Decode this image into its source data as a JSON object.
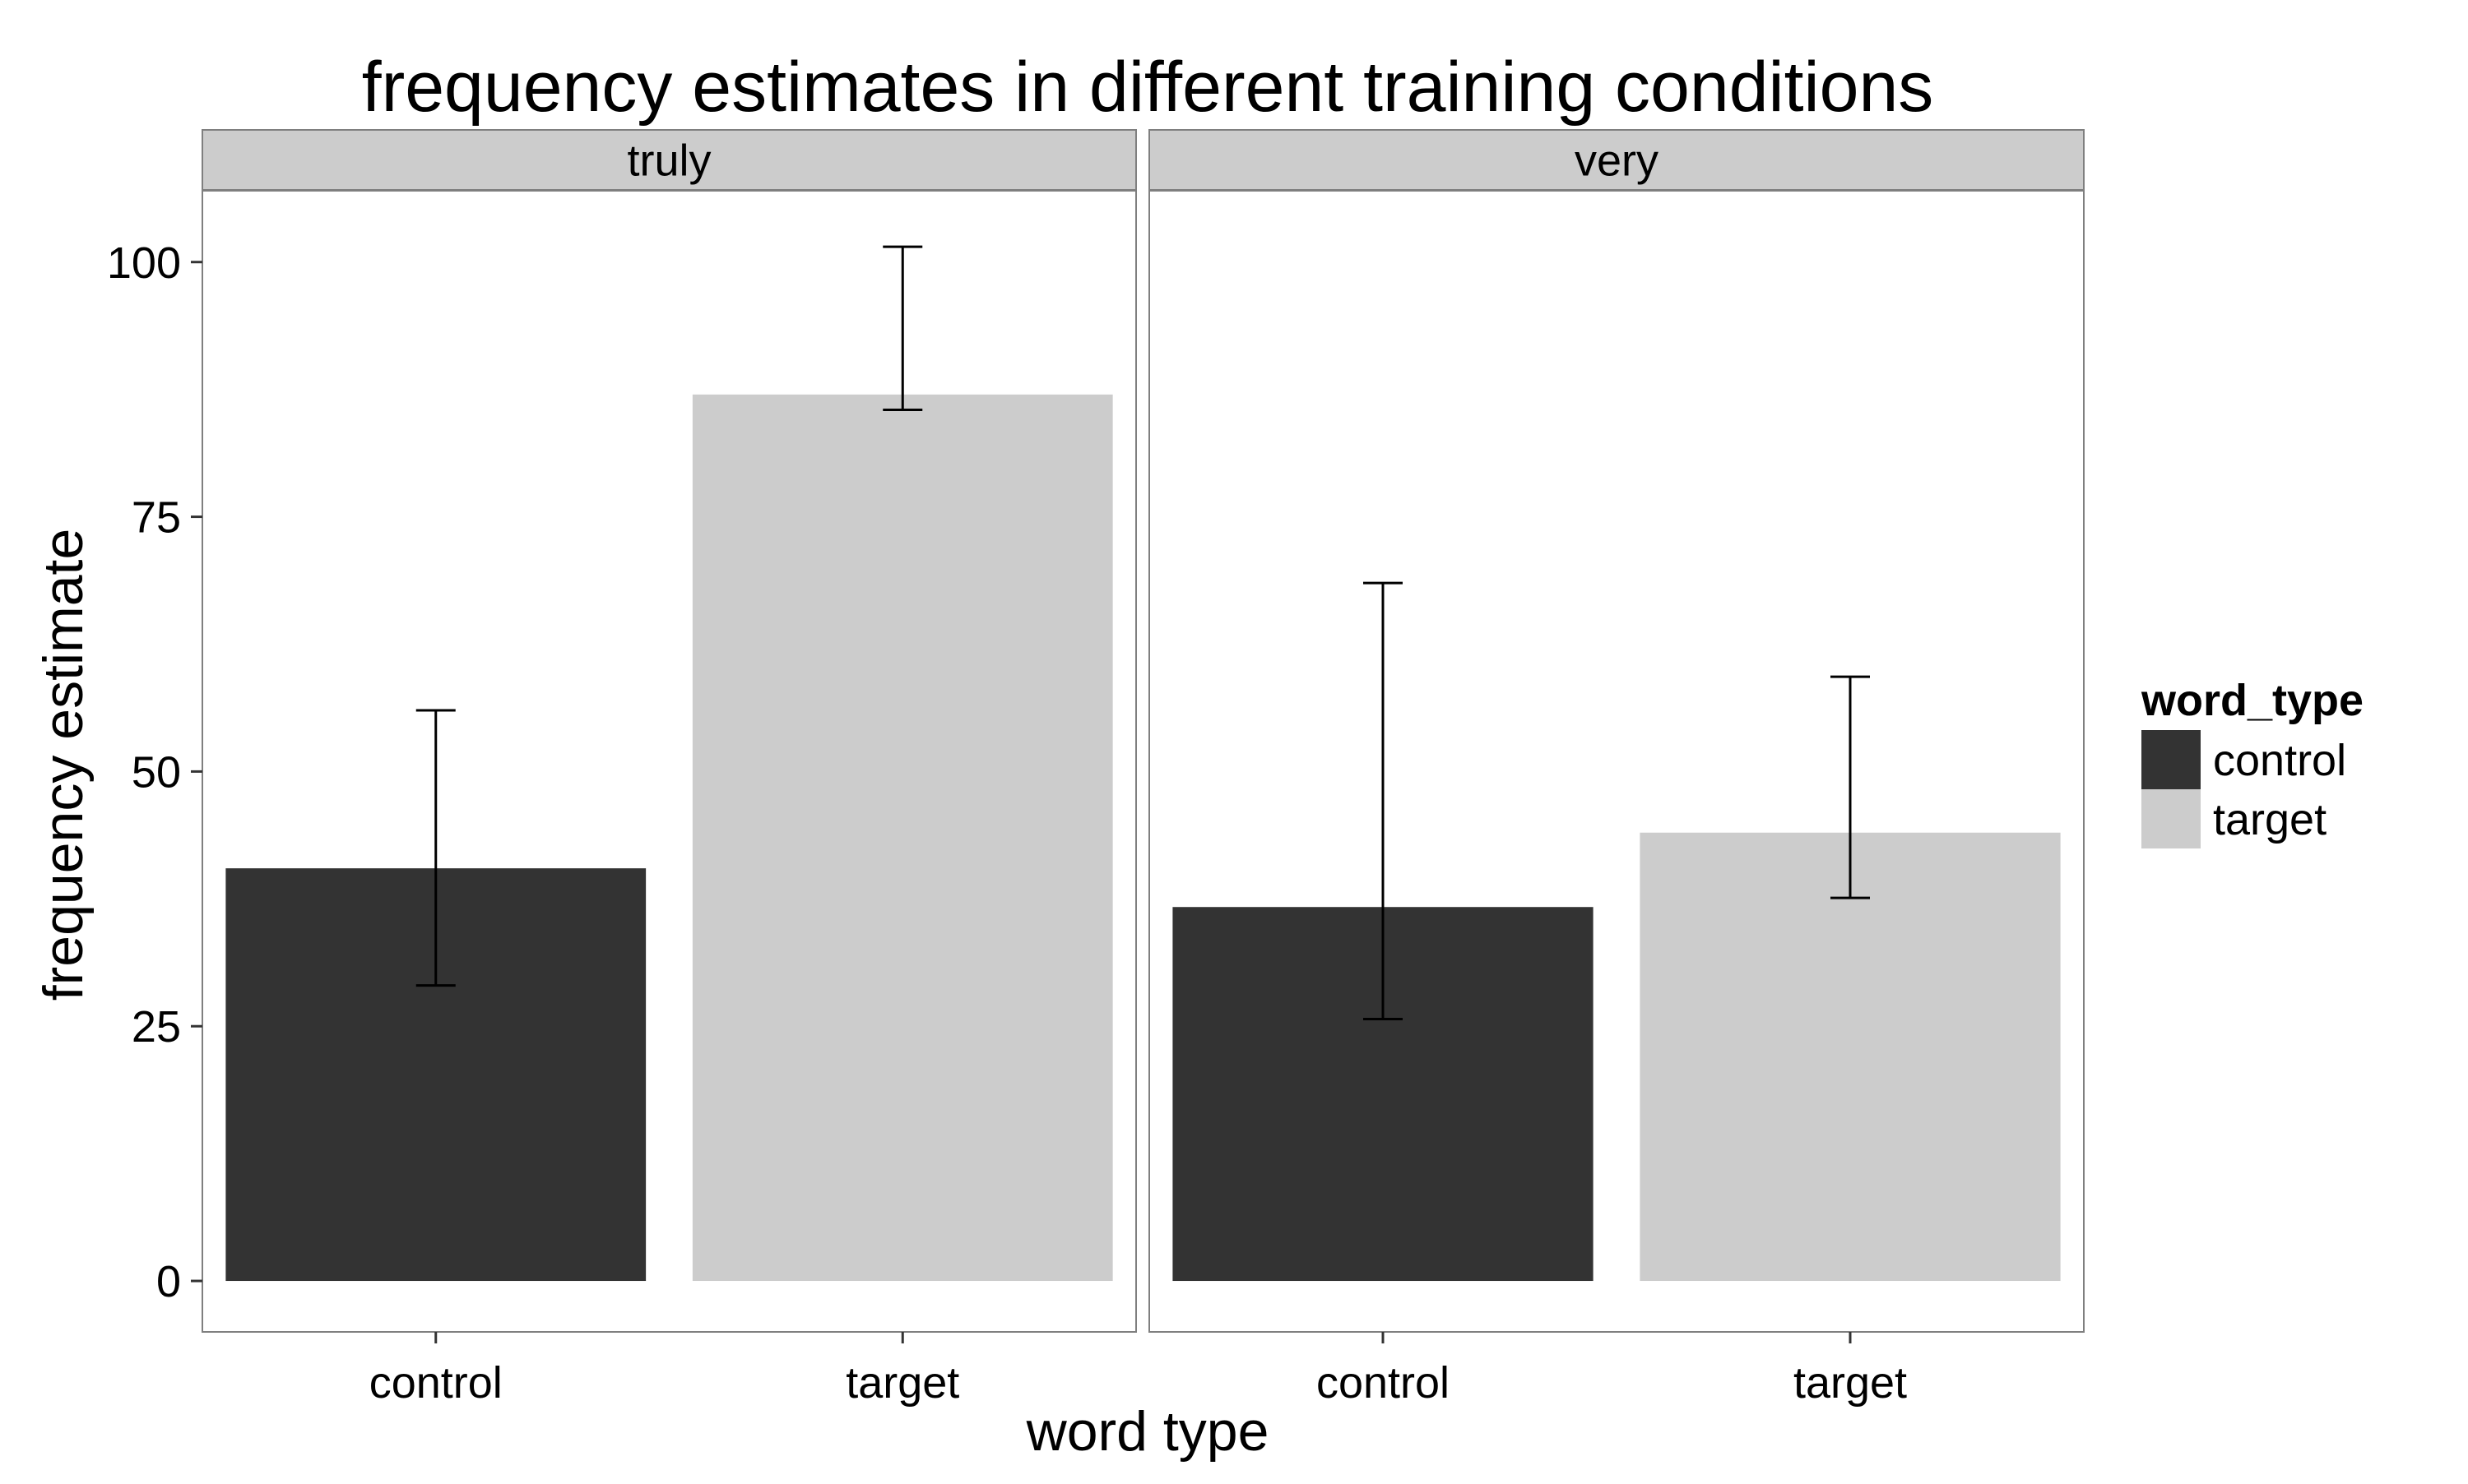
{
  "chart_data": {
    "type": "bar",
    "title": "frequency estimates in different training conditions",
    "xlabel": "word type",
    "ylabel": "frequency estimate",
    "ylim": [
      -5,
      107
    ],
    "yticks": [
      0,
      25,
      50,
      75,
      100
    ],
    "grid": false,
    "categories": [
      "control",
      "target"
    ],
    "facets": [
      {
        "label": "truly",
        "bars": [
          {
            "category": "control",
            "value": 40.5,
            "err_low": 29.0,
            "err_high": 56.0
          },
          {
            "category": "target",
            "value": 87.0,
            "err_low": 85.5,
            "err_high": 101.5
          }
        ]
      },
      {
        "label": "very",
        "bars": [
          {
            "category": "control",
            "value": 36.7,
            "err_low": 25.7,
            "err_high": 68.5
          },
          {
            "category": "target",
            "value": 44.0,
            "err_low": 37.6,
            "err_high": 59.3
          }
        ]
      }
    ],
    "legend": {
      "title": "word_type",
      "position": "right",
      "entries": [
        {
          "label": "control",
          "color": "#333333"
        },
        {
          "label": "target",
          "color": "#cccccc"
        }
      ]
    }
  },
  "colors": {
    "control": "#333333",
    "target": "#cccccc",
    "strip": "#cccccc",
    "panel_border": "#7f7f7f",
    "text": "#000000"
  }
}
